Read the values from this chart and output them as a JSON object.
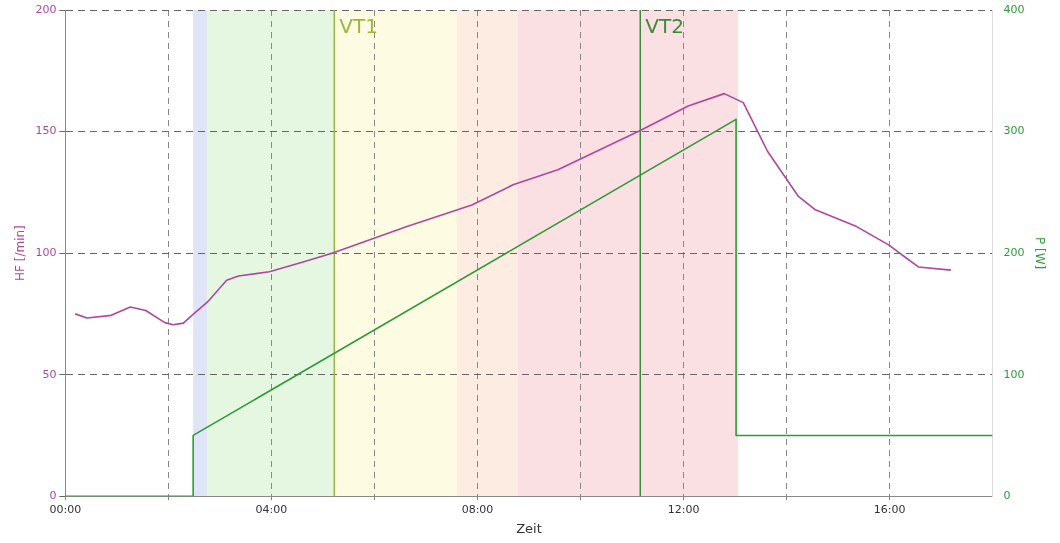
{
  "chart_data": {
    "type": "line",
    "xlabel": "Zeit",
    "ylabel": "HF [/min]",
    "y2label": "P [W]",
    "xlim": [
      0,
      18
    ],
    "xticks": [
      {
        "value": 0,
        "label": "00:00"
      },
      {
        "value": 2,
        "label": null
      },
      {
        "value": 4,
        "label": "04:00"
      },
      {
        "value": 6,
        "label": null
      },
      {
        "value": 8,
        "label": "08:00"
      },
      {
        "value": 10,
        "label": null
      },
      {
        "value": 12,
        "label": "12:00"
      },
      {
        "value": 14,
        "label": null
      },
      {
        "value": 16,
        "label": "16:00"
      }
    ],
    "ylim": [
      0,
      200
    ],
    "yticks": [
      0,
      50,
      100,
      150,
      200
    ],
    "y2lim": [
      0,
      400
    ],
    "y2ticks": [
      0,
      100,
      200,
      300,
      400
    ],
    "grid": true,
    "legend": false,
    "line_style": "solid",
    "bands": [
      {
        "axis": "x",
        "from": 2.48,
        "to": 2.76,
        "color": "#dfe5f7"
      },
      {
        "axis": "x",
        "from": 2.76,
        "to": 5.22,
        "color": "#e6f7e1"
      },
      {
        "axis": "x",
        "from": 5.22,
        "to": 7.6,
        "color": "#fdfbe1"
      },
      {
        "axis": "x",
        "from": 7.6,
        "to": 8.78,
        "color": "#fdece1"
      },
      {
        "axis": "x",
        "from": 8.78,
        "to": 13.06,
        "color": "#fbe0e3"
      }
    ],
    "ref_lines": [
      {
        "axis": "x",
        "value": 5.22,
        "label": "VT1",
        "color": "#9ab83a"
      },
      {
        "axis": "x",
        "value": 11.16,
        "label": "VT2",
        "color": "#3c8a3c"
      }
    ],
    "series": [
      {
        "color": "#b0479e",
        "axis": "y",
        "x": [
          0.19,
          0.42,
          0.89,
          1.26,
          1.56,
          1.93,
          2.09,
          2.29,
          2.49,
          2.76,
          3.13,
          3.36,
          3.96,
          4.63,
          5.23,
          6.63,
          7.89,
          8.69,
          9.56,
          11.16,
          12.09,
          12.79,
          13.16,
          13.63,
          14.23,
          14.56,
          15.36,
          15.99,
          16.29,
          16.56,
          17.19
        ],
        "values": [
          75,
          73.3,
          74.4,
          77.8,
          76.4,
          71.4,
          70.5,
          71.2,
          75,
          79.9,
          88.8,
          90.6,
          92.3,
          96.4,
          100.3,
          110.9,
          119.8,
          128.1,
          134.3,
          150.4,
          160.5,
          165.6,
          161.9,
          141.9,
          123.3,
          117.8,
          110.9,
          103.3,
          98.5,
          94.3,
          93
        ]
      },
      {
        "color": "#2e9a3a",
        "axis": "y2",
        "x": [
          0,
          2.48,
          2.48,
          13.02,
          13.02,
          18
        ],
        "values": [
          0,
          0,
          50,
          310,
          50,
          50
        ]
      }
    ]
  }
}
